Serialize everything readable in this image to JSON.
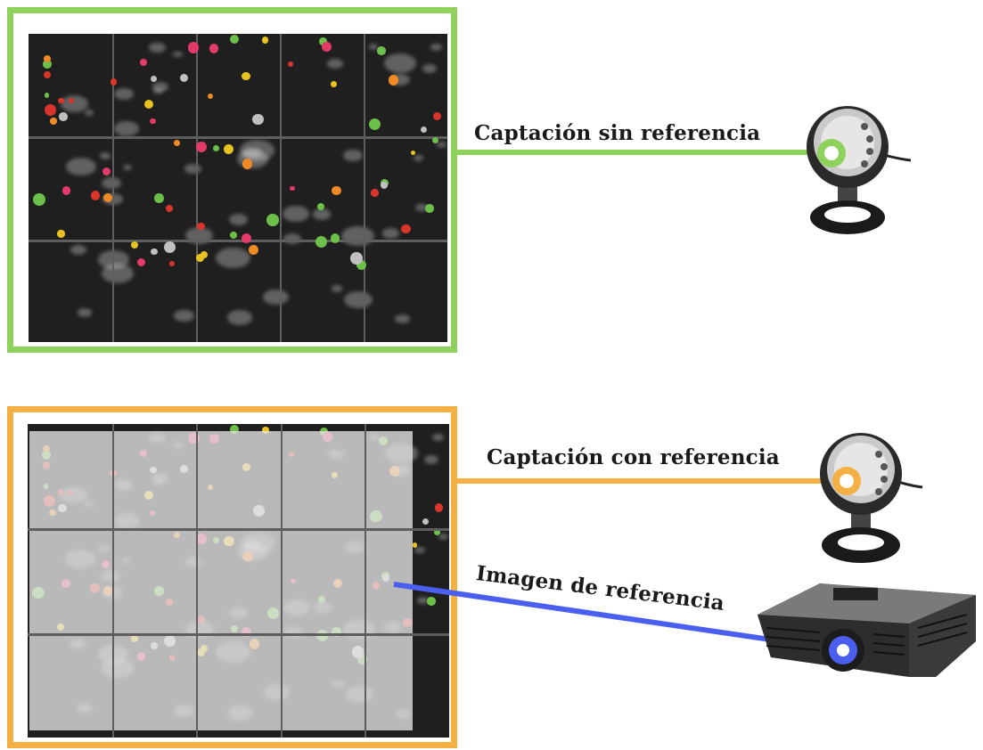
{
  "labels": {
    "top": "Captación sin referencia",
    "middle": "Captación con referencia",
    "bottom": "Imagen de referencia"
  },
  "colors": {
    "green": "#8ed15c",
    "orange": "#f5b043",
    "blue": "#4a5ff0"
  },
  "icons": {
    "webcam_top": "webcam-icon",
    "webcam_bottom": "webcam-icon",
    "projector": "projector-icon"
  }
}
